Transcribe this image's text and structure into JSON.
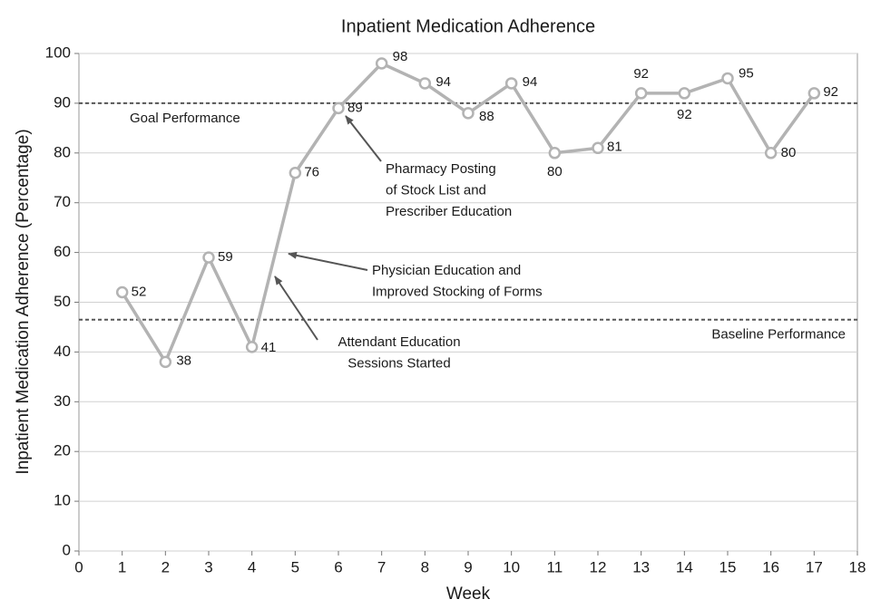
{
  "chart_data": {
    "type": "line",
    "title": "Inpatient Medication Adherence",
    "x_label": "Week",
    "y_label": "Inpatient Medication Adherence (Percentage)",
    "x": [
      1,
      2,
      3,
      4,
      5,
      6,
      7,
      8,
      9,
      10,
      11,
      12,
      13,
      14,
      15,
      16,
      17
    ],
    "series": [
      {
        "name": "Inpatient Medication Adherence",
        "color": "#b3b3b3",
        "values": [
          52,
          38,
          59,
          41,
          76,
          89,
          98,
          94,
          88,
          94,
          80,
          81,
          92,
          92,
          95,
          80,
          92
        ]
      }
    ],
    "xlim": [
      0,
      18
    ],
    "xticks": [
      0,
      1,
      2,
      3,
      4,
      5,
      6,
      7,
      8,
      9,
      10,
      11,
      12,
      13,
      14,
      15,
      16,
      17,
      18
    ],
    "ylim": [
      0,
      100
    ],
    "yticks": [
      0,
      10,
      20,
      30,
      40,
      50,
      60,
      70,
      80,
      90,
      100
    ],
    "grid": true,
    "reference_lines": [
      {
        "value": 90,
        "label": "Goal Performance",
        "color": "#555555"
      },
      {
        "value": 46.5,
        "label": "Baseline Performance",
        "color": "#555555"
      }
    ],
    "annotations": [
      {
        "text": [
          "Pharmacy Posting",
          "of Stock List and",
          "Prescriber Education"
        ]
      },
      {
        "text": [
          "Physician Education and",
          "Improved Stocking of Forms"
        ]
      },
      {
        "text": [
          "Attendant Education",
          "Sessions Started"
        ]
      }
    ]
  }
}
